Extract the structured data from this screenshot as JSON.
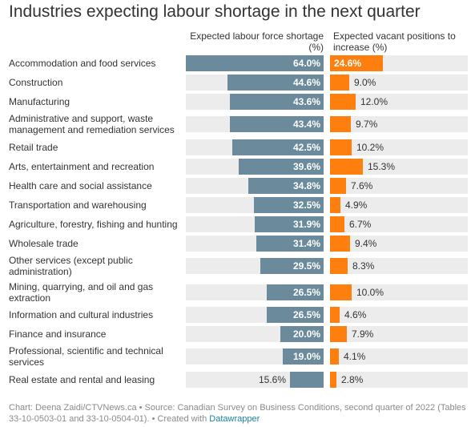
{
  "title": "Industries expecting labour shortage in the next quarter",
  "footer": {
    "text": "Chart: Deena Zaidi/CTVNews.ca • Source: Canadian Survey on Business Conditions, second quarter of 2022 (Tables 33-10-0503-01 and 33-10-0504-01). • Created with ",
    "link": "Datawrapper"
  },
  "colors": {
    "shortage": "#6b8a9b",
    "vacant": "#ff7f0e",
    "track": "#ececec"
  },
  "chart_data": {
    "type": "bar",
    "orientation": "horizontal",
    "title": "Industries expecting labour shortage in the next quarter",
    "categories": [
      "Accommodation and food services",
      "Construction",
      "Manufacturing",
      "Administrative and support, waste management and remediation services",
      "Retail trade",
      "Arts, entertainment and recreation",
      "Health care and social assistance",
      "Transportation and warehousing",
      "Agriculture, forestry, fishing and hunting",
      "Wholesale trade",
      "Other services (except public administration)",
      "Mining, quarrying, and oil and gas extraction",
      "Information and cultural industries",
      "Finance and insurance",
      "Professional, scientific and technical services",
      "Real estate and rental and leasing"
    ],
    "series": [
      {
        "name": "Expected labour force shortage (%)",
        "values": [
          64.0,
          44.6,
          43.6,
          43.4,
          42.5,
          39.6,
          34.8,
          32.5,
          31.9,
          31.4,
          29.5,
          26.5,
          26.5,
          20.0,
          19.0,
          15.6
        ],
        "labels": [
          "64.0%",
          "44.6%",
          "43.6%",
          "43.4%",
          "42.5%",
          "39.6%",
          "34.8%",
          "32.5%",
          "31.9%",
          "31.4%",
          "29.5%",
          "26.5%",
          "26.5%",
          "20.0%",
          "19.0%",
          "15.6%"
        ],
        "max": 64.0
      },
      {
        "name": "Expected vacant positions to increase (%)",
        "values": [
          24.6,
          9.0,
          12.0,
          9.7,
          10.2,
          15.3,
          7.6,
          4.9,
          6.7,
          9.4,
          8.3,
          10.0,
          4.6,
          7.9,
          4.1,
          2.8
        ],
        "labels": [
          "24.6%",
          "9.0%",
          "12.0%",
          "9.7%",
          "10.2%",
          "15.3%",
          "7.6%",
          "4.9%",
          "6.7%",
          "9.4%",
          "8.3%",
          "10.0%",
          "4.6%",
          "7.9%",
          "4.1%",
          "2.8%"
        ],
        "max": 64.0
      }
    ]
  }
}
